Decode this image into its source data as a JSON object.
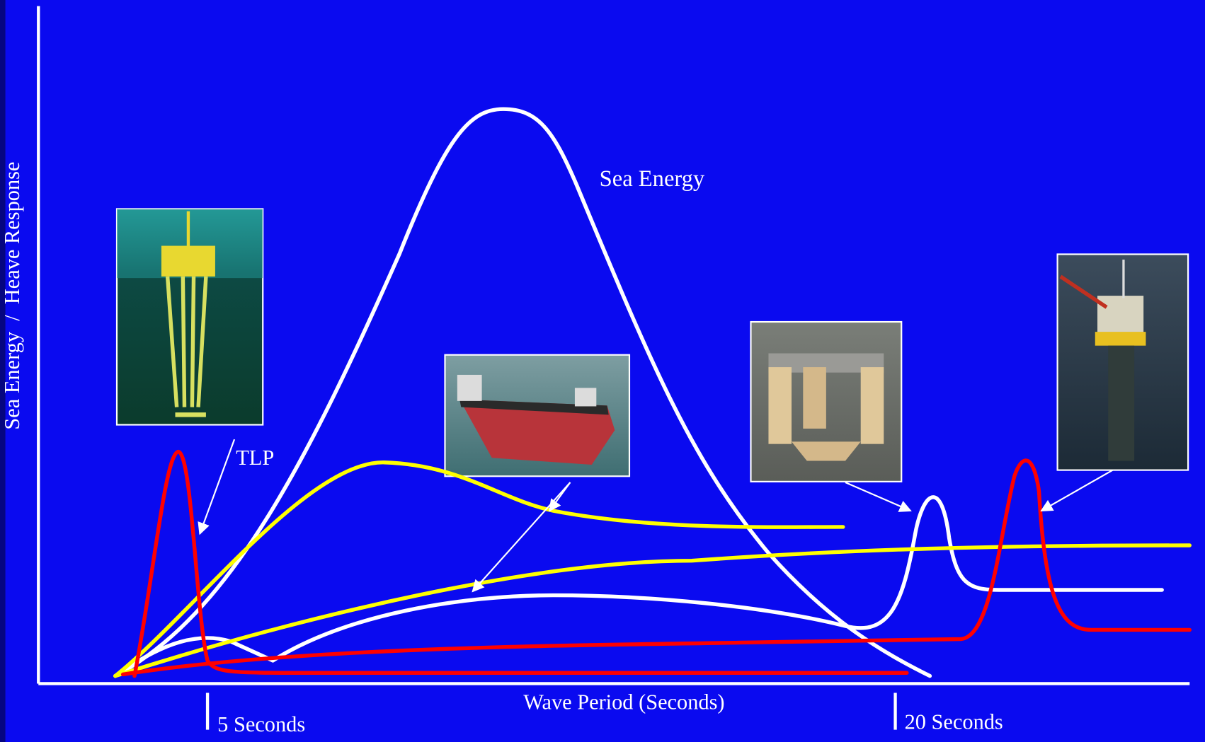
{
  "y_axis_label": "Sea Energy  /  Heave Response",
  "x_axis_label": "Wave Period (Seconds)",
  "annotations": {
    "sea_energy": "Sea Energy",
    "tlp": "TLP"
  },
  "period_markers": [
    "5 Seconds",
    "20 Seconds"
  ]
}
